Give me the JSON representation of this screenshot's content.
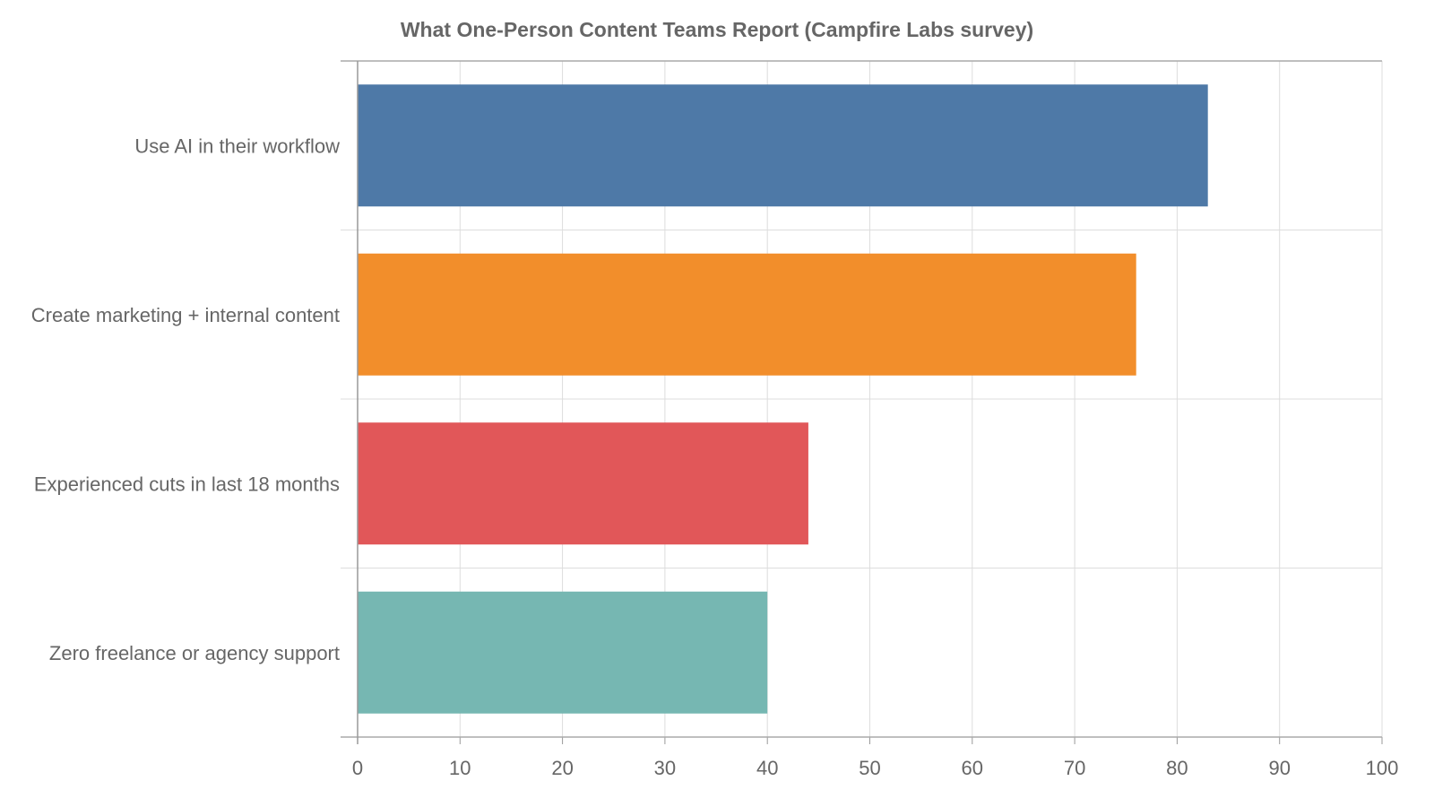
{
  "chart_data": {
    "type": "bar",
    "orientation": "horizontal",
    "title": "What One-Person Content Teams Report (Campfire Labs survey)",
    "xlabel": "",
    "ylabel": "",
    "categories": [
      "Use AI in their workflow",
      "Create marketing + internal content",
      "Experienced cuts in last 18 months",
      "Zero freelance or agency support"
    ],
    "values": [
      83,
      76,
      44,
      40
    ],
    "colors": [
      "#4e79a7",
      "#f28e2b",
      "#e15759",
      "#76b7b2"
    ],
    "xlim": [
      0,
      100
    ],
    "xticks": [
      0,
      10,
      20,
      30,
      40,
      50,
      60,
      70,
      80,
      90,
      100
    ],
    "grid": true,
    "legend": "none"
  }
}
